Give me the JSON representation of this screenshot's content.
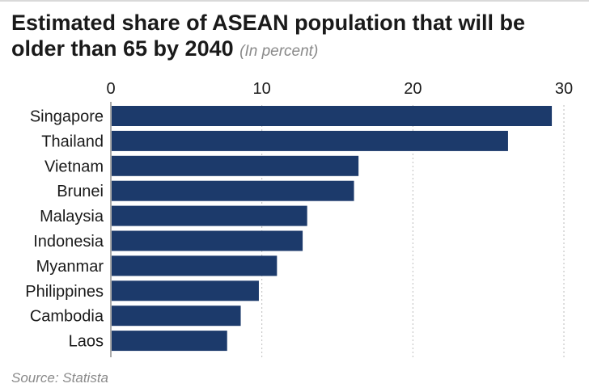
{
  "header": {
    "title": "Estimated share of ASEAN population that will be older than 65 by 2040",
    "subtitle": "(In percent)"
  },
  "source": "Source: Statista",
  "colors": {
    "bar": "#1c3a6b",
    "grid": "#bdbdbd",
    "text": "#1a1a1a",
    "muted": "#8a8a8a"
  },
  "chart_data": {
    "type": "bar",
    "orientation": "horizontal",
    "title": "Estimated share of ASEAN population that will be older than 65 by 2040",
    "subtitle": "(In percent)",
    "categories": [
      "Singapore",
      "Thailand",
      "Vietnam",
      "Brunei",
      "Malaysia",
      "Indonesia",
      "Myanmar",
      "Philippines",
      "Cambodia",
      "Laos"
    ],
    "values": [
      29.2,
      26.3,
      16.4,
      16.1,
      13.0,
      12.7,
      11.0,
      9.8,
      8.6,
      7.7
    ],
    "xlim": [
      0,
      30
    ],
    "xticks": [
      0,
      10,
      20,
      30
    ],
    "x_axis_position": "top",
    "grid": true,
    "legend": "none"
  }
}
